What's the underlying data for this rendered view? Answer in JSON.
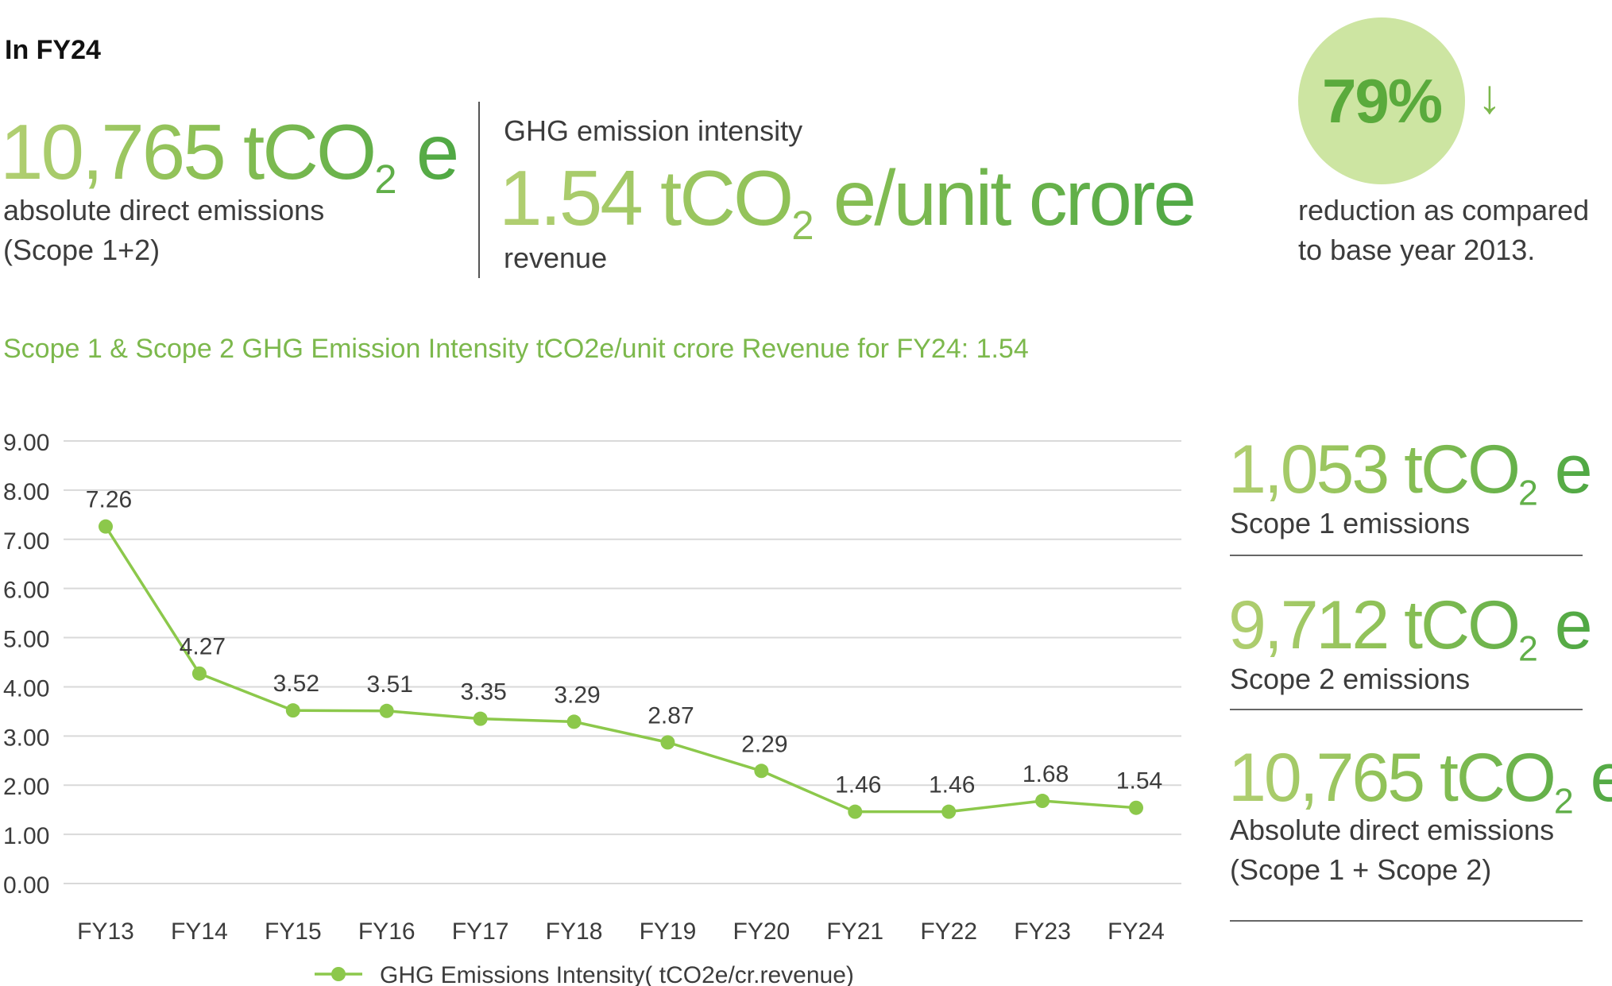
{
  "header": {
    "title": "In FY24"
  },
  "kpi_absolute": {
    "value": "10,765",
    "unit_main": "tCO",
    "unit_sub": "2",
    "unit_suffix": " e",
    "line1": "absolute direct emissions",
    "line2": "(Scope 1+2)"
  },
  "kpi_intensity": {
    "label": "GHG emission intensity",
    "value": "1.54",
    "unit_main": "tCO",
    "unit_sub": "2",
    "unit_suffix": " e/unit crore",
    "sub_label": "revenue"
  },
  "kpi_reduction": {
    "value": "79%",
    "arrow": "↓",
    "line1": "reduction as compared",
    "line2": "to base year 2013."
  },
  "chart_title": "Scope 1 & Scope 2 GHG Emission Intensity tCO2e/unit crore Revenue for FY24: 1.54",
  "side_stats": [
    {
      "value": "1,053",
      "unit_main": "tCO",
      "unit_sub": "2",
      "unit_suffix": " e",
      "label": "Scope 1 emissions",
      "label2": ""
    },
    {
      "value": "9,712",
      "unit_main": "tCO",
      "unit_sub": "2",
      "unit_suffix": " e",
      "label": "Scope 2 emissions",
      "label2": ""
    },
    {
      "value": "10,765",
      "unit_main": "tCO",
      "unit_sub": "2",
      "unit_suffix": " e",
      "label": "Absolute direct emissions",
      "label2": "(Scope 1 + Scope 2)"
    }
  ],
  "colors": {
    "line": "#8cc84b",
    "grid": "#d9d9d9",
    "text": "#3c3c3c",
    "circle": "#cde5a2"
  },
  "chart_data": {
    "type": "line",
    "categories": [
      "FY13",
      "FY14",
      "FY15",
      "FY16",
      "FY17",
      "FY18",
      "FY19",
      "FY20",
      "FY21",
      "FY22",
      "FY23",
      "FY24"
    ],
    "series": [
      {
        "name": "GHG Emissions Intensity( tCO2e/cr.revenue)",
        "values": [
          7.26,
          4.27,
          3.52,
          3.51,
          3.35,
          3.29,
          2.87,
          2.29,
          1.46,
          1.46,
          1.68,
          1.54
        ]
      }
    ],
    "y_ticks": [
      "9.00",
      "8.00",
      "7.00",
      "6.00",
      "5.00",
      "4.00",
      "3.00",
      "2.00",
      "1.00",
      "0.00"
    ],
    "ylim": [
      0,
      9
    ],
    "grid": true,
    "legend_position": "bottom-left"
  }
}
